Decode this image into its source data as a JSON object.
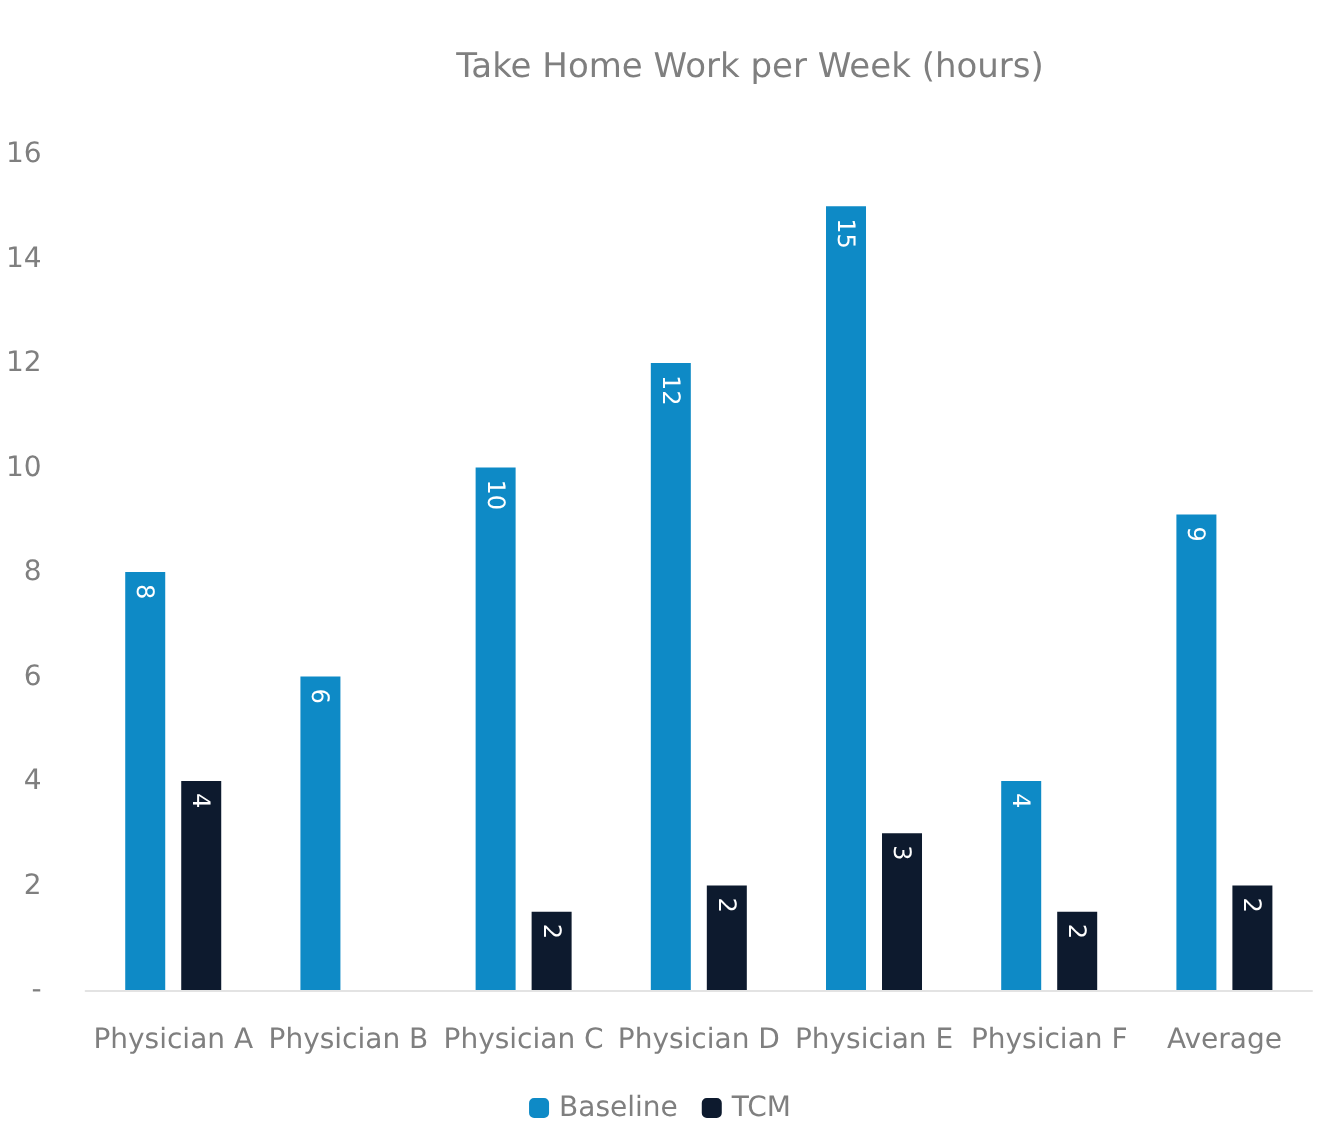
{
  "chart_data": {
    "type": "bar",
    "title": "Take Home Work per Week (hours)",
    "categories": [
      "Physician A",
      "Physician B",
      "Physician C",
      "Physician D",
      "Physician E",
      "Physician F",
      "Average"
    ],
    "series": [
      {
        "name": "Baseline",
        "color": "#0e8ac6",
        "values": [
          8,
          6,
          10,
          12,
          15,
          4,
          9.1
        ],
        "value_labels": [
          "8",
          "6",
          "10",
          "12",
          "15",
          "4",
          "9"
        ]
      },
      {
        "name": "TCM",
        "color": "#0d1a2e",
        "values": [
          4,
          null,
          1.5,
          2,
          3,
          1.5,
          2
        ],
        "value_labels": [
          "4",
          null,
          "2",
          "2",
          "3",
          "2",
          "2"
        ]
      }
    ],
    "ylim": [
      0,
      16
    ],
    "yticks": [
      {
        "value": 0,
        "label": "-"
      },
      2,
      4,
      6,
      8,
      10,
      12,
      14,
      16
    ],
    "grid": false,
    "legend": "bottom"
  }
}
